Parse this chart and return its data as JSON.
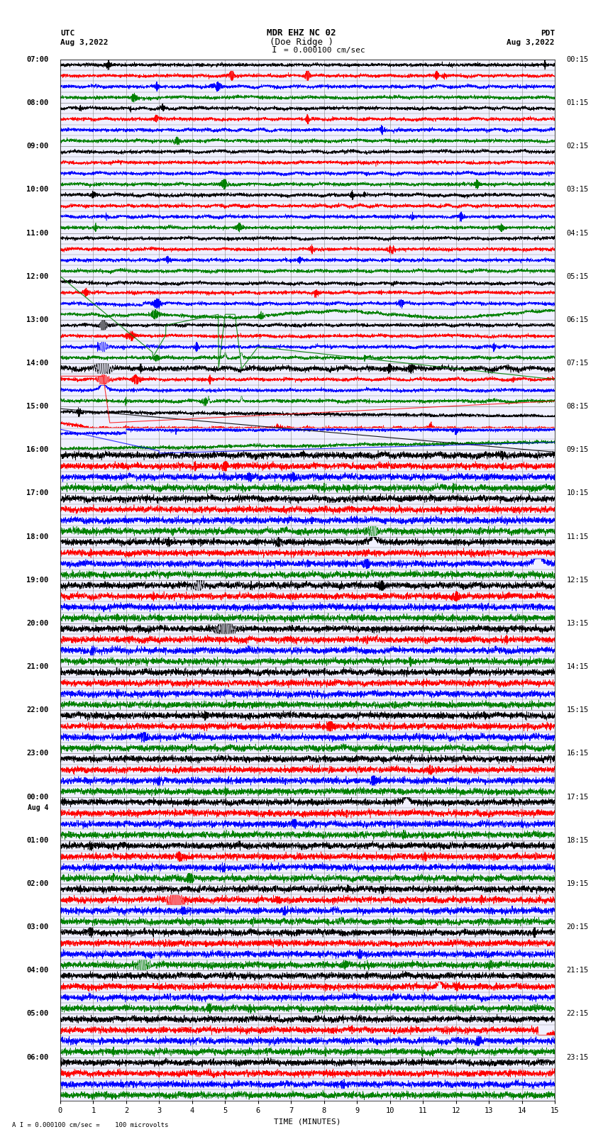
{
  "title_line1": "MDR EHZ NC 02",
  "title_line2": "(Doe Ridge )",
  "scale_text": "I = 0.000100 cm/sec",
  "utc_label": "UTC",
  "utc_date": "Aug 3,2022",
  "pdt_label": "PDT",
  "pdt_date": "Aug 3,2022",
  "xlabel": "TIME (MINUTES)",
  "bottom_label": "A I = 0.000100 cm/sec =    100 microvolts",
  "xlim": [
    0,
    15
  ],
  "xticks": [
    0,
    1,
    2,
    3,
    4,
    5,
    6,
    7,
    8,
    9,
    10,
    11,
    12,
    13,
    14,
    15
  ],
  "bg_color": "#ffffff",
  "grid_color": "#888888",
  "trace_colors": [
    "black",
    "red",
    "blue",
    "green"
  ],
  "num_rows": 96,
  "left_labels_hours": [
    "07:00",
    "08:00",
    "09:00",
    "10:00",
    "11:00",
    "12:00",
    "13:00",
    "14:00",
    "15:00",
    "16:00",
    "17:00",
    "18:00",
    "19:00",
    "20:00",
    "21:00",
    "22:00",
    "23:00",
    "00:00",
    "01:00",
    "02:00",
    "03:00",
    "04:00",
    "05:00",
    "06:00"
  ],
  "right_labels_pdt": [
    "00:15",
    "01:15",
    "02:15",
    "03:15",
    "04:15",
    "05:15",
    "06:15",
    "07:15",
    "08:15",
    "09:15",
    "10:15",
    "11:15",
    "12:15",
    "13:15",
    "14:15",
    "15:15",
    "16:15",
    "17:15",
    "18:15",
    "19:15",
    "20:15",
    "21:15",
    "22:15",
    "23:15"
  ],
  "plot_bg": "#f0f0ff",
  "fig_width": 8.5,
  "fig_height": 16.13,
  "title_fontsize": 9,
  "label_fontsize": 8,
  "tick_fontsize": 7.5,
  "side_label_fontsize": 7.5
}
